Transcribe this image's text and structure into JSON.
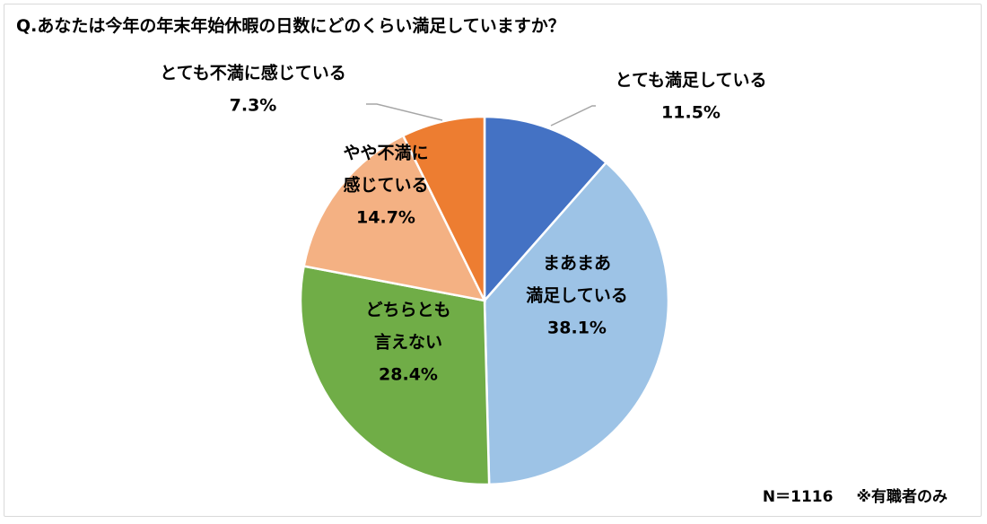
{
  "chart_data": {
    "type": "pie",
    "title": "Q.あなたは今年の年末年始休暇の日数にどのくらい満足していますか？",
    "slices": [
      {
        "label_lines": [
          "とても満足している"
        ],
        "value_label": "11.5%",
        "value": 11.5,
        "color": "#4472c4"
      },
      {
        "label_lines": [
          "まあまあ",
          "満足している"
        ],
        "value_label": "38.1%",
        "value": 38.1,
        "color": "#9dc3e6"
      },
      {
        "label_lines": [
          "どちらとも",
          "言えない"
        ],
        "value_label": "28.4%",
        "value": 28.4,
        "color": "#70ad47"
      },
      {
        "label_lines": [
          "やや不満に",
          "感じている"
        ],
        "value_label": "14.7%",
        "value": 14.7,
        "color": "#f4b183"
      },
      {
        "label_lines": [
          "とても不満に感じている"
        ],
        "value_label": "7.3%",
        "value": 7.3,
        "color": "#ed7d31"
      }
    ],
    "start_angle_deg": 0,
    "direction": "clockwise",
    "legend": "none"
  },
  "footnote": {
    "n": "N＝1116",
    "note": "※有職者のみ"
  }
}
